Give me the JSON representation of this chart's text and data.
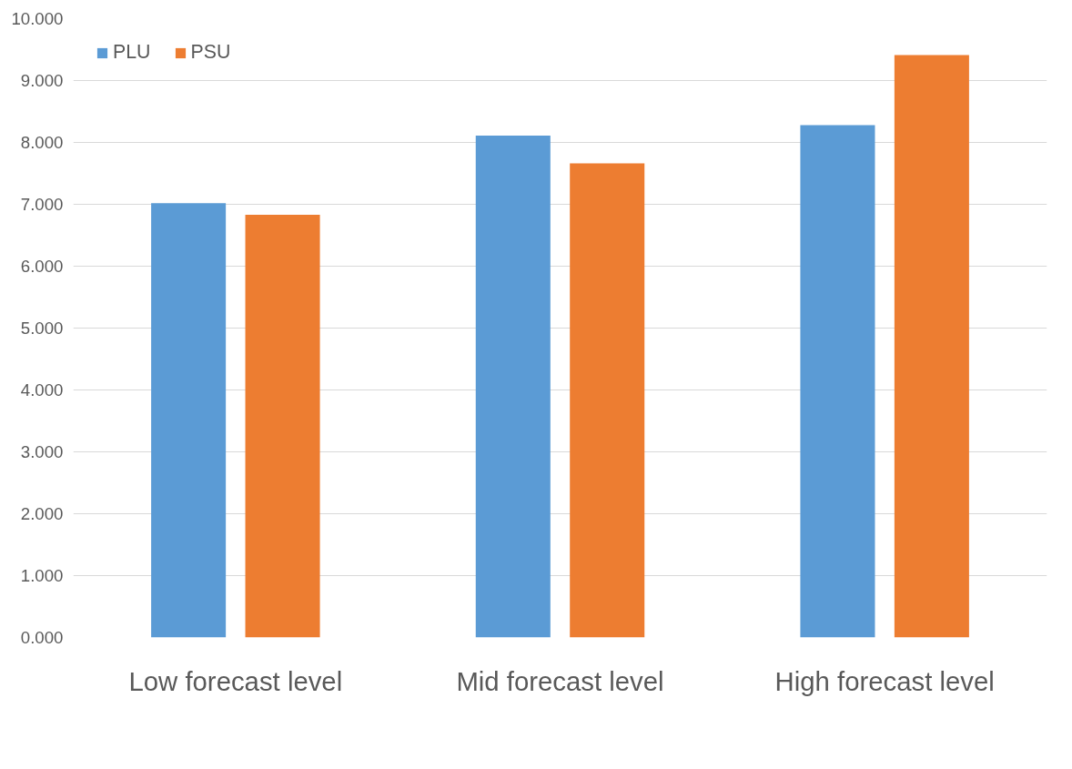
{
  "chart_data": {
    "type": "bar",
    "categories": [
      "Low forecast level",
      "Mid forecast level",
      "High forecast level"
    ],
    "series": [
      {
        "name": "PLU",
        "color": "#5b9bd5",
        "values": [
          7.02,
          8.11,
          8.28
        ]
      },
      {
        "name": "PSU",
        "color": "#ed7d31",
        "values": [
          6.83,
          7.66,
          9.41
        ]
      }
    ],
    "ylim": [
      0,
      10
    ],
    "yticks": [
      {
        "value": 0,
        "label": "0.000"
      },
      {
        "value": 1,
        "label": "1.000"
      },
      {
        "value": 2,
        "label": "2.000"
      },
      {
        "value": 3,
        "label": "3.000"
      },
      {
        "value": 4,
        "label": "4.000"
      },
      {
        "value": 5,
        "label": "5.000"
      },
      {
        "value": 6,
        "label": "6.000"
      },
      {
        "value": 7,
        "label": "7.000"
      },
      {
        "value": 8,
        "label": "8.000"
      },
      {
        "value": 9,
        "label": "9.000"
      },
      {
        "value": 10,
        "label": "10.000"
      }
    ],
    "grid": "y",
    "legend": "top left"
  }
}
